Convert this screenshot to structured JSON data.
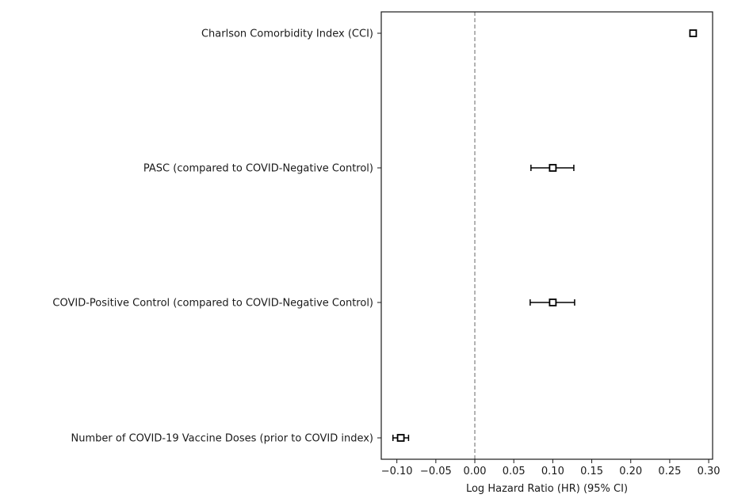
{
  "chart_data": {
    "type": "scatter",
    "subtype": "forest-plot",
    "title": "",
    "xlabel": "Log Hazard Ratio (HR) (95% CI)",
    "ylabel": "",
    "xlim": [
      -0.12,
      0.305
    ],
    "xticks": [
      -0.1,
      -0.05,
      0.0,
      0.05,
      0.1,
      0.15,
      0.2,
      0.25,
      0.3
    ],
    "xtick_labels": [
      "−0.10",
      "−0.05",
      "0.00",
      "0.05",
      "0.10",
      "0.15",
      "0.20",
      "0.25",
      "0.30"
    ],
    "reference_line": 0.0,
    "grid": false,
    "legend": "none",
    "marker_color": "#000000",
    "reference_line_color": "#808080",
    "rows": [
      {
        "label": "Charlson Comorbidity Index (CCI)",
        "estimate": 0.28,
        "ci_low": 0.28,
        "ci_high": 0.28
      },
      {
        "label": "PASC  (compared to COVID-Negative Control)",
        "estimate": 0.1,
        "ci_low": 0.072,
        "ci_high": 0.127
      },
      {
        "label": "COVID-Positive Control (compared to COVID-Negative Control)",
        "estimate": 0.1,
        "ci_low": 0.071,
        "ci_high": 0.128
      },
      {
        "label": "Number of COVID-19 Vaccine Doses (prior to COVID index)",
        "estimate": -0.095,
        "ci_low": -0.105,
        "ci_high": -0.085
      }
    ]
  }
}
